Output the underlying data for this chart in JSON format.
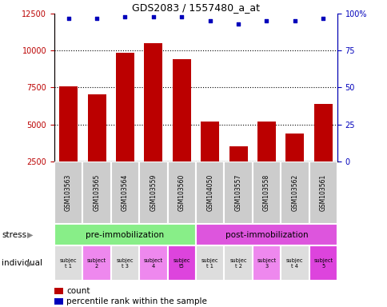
{
  "title": "GDS2083 / 1557480_a_at",
  "samples": [
    "GSM103563",
    "GSM103565",
    "GSM103564",
    "GSM103559",
    "GSM103560",
    "GSM104050",
    "GSM103557",
    "GSM103558",
    "GSM103562",
    "GSM103561"
  ],
  "counts": [
    7600,
    7050,
    9850,
    10500,
    9400,
    5200,
    3500,
    5200,
    4400,
    6400
  ],
  "percentile_ranks": [
    97,
    97,
    98,
    98,
    98,
    95,
    93,
    95,
    95,
    97
  ],
  "ylim_left": [
    2500,
    12500
  ],
  "ylim_right": [
    0,
    100
  ],
  "yticks_left": [
    2500,
    5000,
    7500,
    10000,
    12500
  ],
  "yticks_right": [
    0,
    25,
    50,
    75,
    100
  ],
  "bar_color": "#bb0000",
  "dot_color": "#0000bb",
  "stress_labels": [
    "pre-immobilization",
    "post-immobilization"
  ],
  "stress_colors": [
    "#88ee88",
    "#dd55dd"
  ],
  "individual_labels": [
    "subjec\nt 1",
    "subject\n2",
    "subjec\nt 3",
    "subject\n4",
    "subjec\nt5",
    "subjec\nt 1",
    "subjec\nt 2",
    "subject\n3",
    "subjec\nt 4",
    "subject\n5"
  ],
  "individual_colors": [
    "#dddddd",
    "#ee88ee",
    "#dddddd",
    "#ee88ee",
    "#dd44dd",
    "#dddddd",
    "#dddddd",
    "#ee88ee",
    "#dddddd",
    "#dd44dd"
  ],
  "gray_cell_color": "#cccccc",
  "cell_border_color": "#ffffff",
  "legend_count_color": "#bb0000",
  "legend_dot_color": "#0000bb",
  "left_label_color": "#888888"
}
